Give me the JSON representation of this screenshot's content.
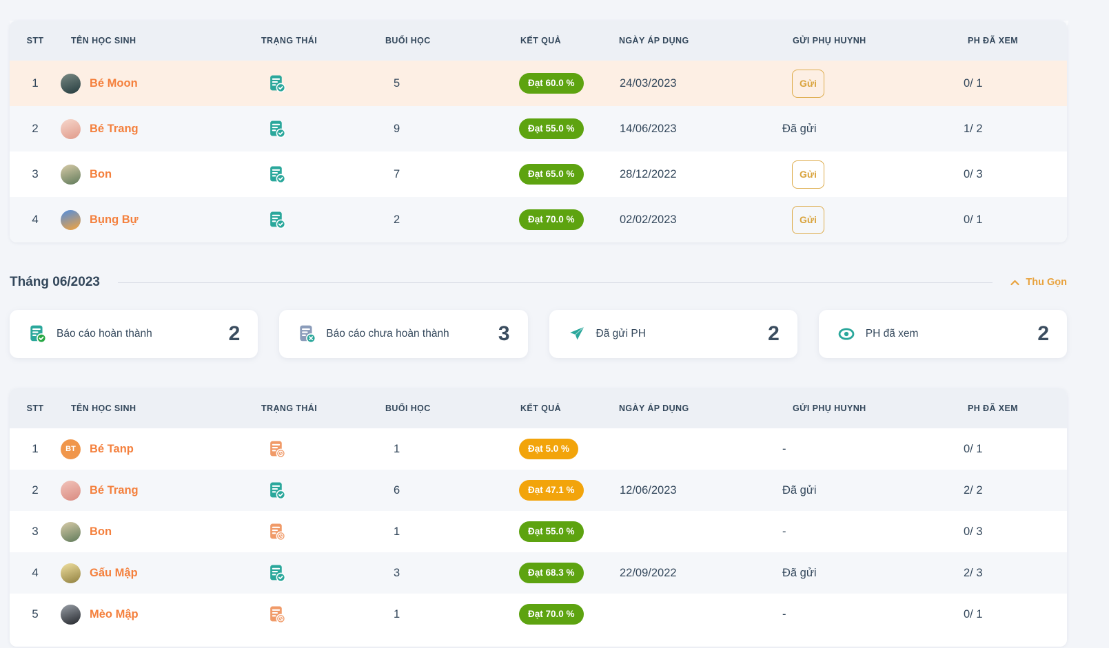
{
  "colors": {
    "accent_name": "#f4803d",
    "pill_green": "#5da310",
    "pill_orange": "#f2a40b",
    "status_completed": "#2aa79b",
    "status_pending": "#f09a68",
    "send_button": "#d9a33c",
    "collapse": "#e8a23d",
    "incomplete_doc": "#8b9cba",
    "teal_icon": "#2aa79b"
  },
  "columns": [
    "STT",
    "Tên học sinh",
    "Trạng thái",
    "Buổi học",
    "Kết quả",
    "Ngày áp dụng",
    "Gửi phụ huynh",
    "PH đã xem"
  ],
  "table1": {
    "rows": [
      {
        "stt": "1",
        "name": "Bé Moon",
        "avatar": [
          "#7a8a84",
          "#243b3e"
        ],
        "status": "completed",
        "sessions": "5",
        "result": "Đạt 60.0 %",
        "result_type": "green",
        "date": "24/03/2023",
        "send": "button",
        "send_label": "Gửi",
        "viewed": "0/ 1",
        "highlight": true
      },
      {
        "stt": "2",
        "name": "Bé Trang",
        "avatar": [
          "#f6d7cc",
          "#e09a8a"
        ],
        "status": "completed",
        "sessions": "9",
        "result": "Đạt 55.0 %",
        "result_type": "green",
        "date": "14/06/2023",
        "send": "text",
        "send_label": "Đã gửi",
        "viewed": "1/ 2"
      },
      {
        "stt": "3",
        "name": "Bon",
        "avatar": [
          "#d8cba8",
          "#5f7a5a"
        ],
        "status": "completed",
        "sessions": "7",
        "result": "Đạt 65.0 %",
        "result_type": "green",
        "date": "28/12/2022",
        "send": "button",
        "send_label": "Gửi",
        "viewed": "0/ 3"
      },
      {
        "stt": "4",
        "name": "Bụng Bự",
        "avatar": [
          "#4f8de0",
          "#f5a33b"
        ],
        "status": "completed",
        "sessions": "2",
        "result": "Đạt 70.0 %",
        "result_type": "green",
        "date": "02/02/2023",
        "send": "button",
        "send_label": "Gửi",
        "viewed": "0/ 1"
      }
    ]
  },
  "section": {
    "title": "Tháng 06/2023",
    "collapse_label": "Thu Gọn"
  },
  "summary_cards": [
    {
      "icon": "report-done-icon",
      "label": "Báo cáo hoàn thành",
      "value": "2"
    },
    {
      "icon": "report-undone-icon",
      "label": "Báo cáo chưa hoàn thành",
      "value": "3"
    },
    {
      "icon": "send-icon",
      "label": "Đã gửi PH",
      "value": "2"
    },
    {
      "icon": "eye-icon",
      "label": "PH đã xem",
      "value": "2"
    }
  ],
  "table2": {
    "rows": [
      {
        "stt": "1",
        "name": "Bé Tanp",
        "avatar_initials": "BT",
        "avatar_bg": "#f0964b",
        "status": "pending",
        "sessions": "1",
        "result": "Đạt 5.0 %",
        "result_type": "orange",
        "date": "",
        "send": "text",
        "send_label": "-",
        "viewed": "0/ 1"
      },
      {
        "stt": "2",
        "name": "Bé Trang",
        "avatar": [
          "#f2c4bb",
          "#d98a80"
        ],
        "status": "completed",
        "sessions": "6",
        "result": "Đạt 47.1 %",
        "result_type": "orange",
        "date": "12/06/2023",
        "send": "text",
        "send_label": "Đã gửi",
        "viewed": "2/ 2"
      },
      {
        "stt": "3",
        "name": "Bon",
        "avatar": [
          "#d8cba8",
          "#5f7a5a"
        ],
        "status": "pending",
        "sessions": "1",
        "result": "Đạt 55.0 %",
        "result_type": "green",
        "date": "",
        "send": "text",
        "send_label": "-",
        "viewed": "0/ 3"
      },
      {
        "stt": "4",
        "name": "Gấu Mập",
        "avatar": [
          "#f0e0a0",
          "#8f7f3f"
        ],
        "status": "completed",
        "sessions": "3",
        "result": "Đạt 68.3 %",
        "result_type": "green",
        "date": "22/09/2022",
        "send": "text",
        "send_label": "Đã gửi",
        "viewed": "2/ 3"
      },
      {
        "stt": "5",
        "name": "Mèo Mập",
        "avatar": [
          "#9aa0a8",
          "#23262b"
        ],
        "status": "pending",
        "sessions": "1",
        "result": "Đạt 70.0 %",
        "result_type": "green",
        "date": "",
        "send": "text",
        "send_label": "-",
        "viewed": "0/ 1"
      }
    ]
  }
}
